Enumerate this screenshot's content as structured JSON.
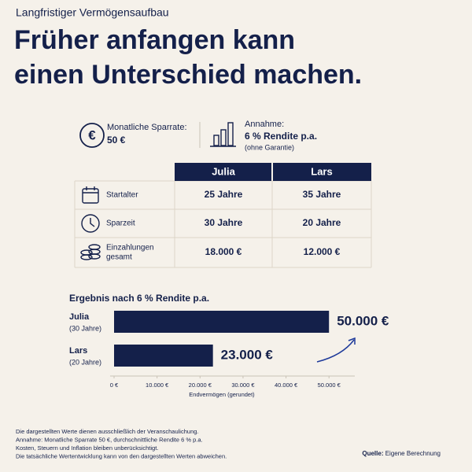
{
  "kicker": "Langfristiger Vermögensaufbau",
  "title": [
    "Früher anfangen kann",
    "einen Unterschied machen."
  ],
  "info": {
    "rate_label": "Monatliche Sparrate:",
    "rate_value": "50 €",
    "assumption_label": "Annahme:",
    "assumption_value": "6 % Rendite p.a.",
    "assumption_note": "(ohne Garantie)"
  },
  "table": {
    "columns": [
      "Julia",
      "Lars"
    ],
    "rows": [
      {
        "label": [
          "Startalter"
        ],
        "cells": [
          "25 Jahre",
          "35 Jahre"
        ]
      },
      {
        "label": [
          "Sparzeit"
        ],
        "cells": [
          "30 Jahre",
          "20 Jahre"
        ]
      },
      {
        "label": [
          "Einzahlungen",
          "gesamt"
        ],
        "cells": [
          "18.000 €",
          "12.000 €"
        ]
      }
    ]
  },
  "chart_data": {
    "type": "bar",
    "orientation": "horizontal",
    "title": "Ergebnis nach 6 % Rendite p.a.",
    "categories": [
      "Julia",
      "Lars"
    ],
    "category_notes": [
      "(30 Jahre)",
      "(20 Jahre)"
    ],
    "values": [
      50000,
      23000
    ],
    "value_labels": [
      "50.000 €",
      "23.000 €"
    ],
    "color": "#14204a",
    "xlim": [
      0,
      56000
    ],
    "xticks": [
      {
        "value": 0,
        "label": "0 €"
      },
      {
        "value": 10000,
        "label": "10.000 €"
      },
      {
        "value": 20000,
        "label": "20.000 €"
      },
      {
        "value": 30000,
        "label": "30.000 €"
      },
      {
        "value": 40000,
        "label": "40.000 €"
      },
      {
        "value": 50000,
        "label": "50.000 €"
      }
    ],
    "xlabel": "Endvermögen (gerundet)"
  },
  "footnotes": [
    "Die dargestellten Werte dienen ausschließlich der Veranschaulichung.",
    "Annahme: Monatliche Sparrate 50 €, durchschnittliche Rendite 6 % p.a.",
    "Kosten, Steuern und Inflation bleiben unberücksichtigt.",
    "Die tatsächliche Wertentwicklung kann von den dargestellten Werten abweichen."
  ],
  "source_label": "Quelle:",
  "source": "Eigene Berechnung"
}
